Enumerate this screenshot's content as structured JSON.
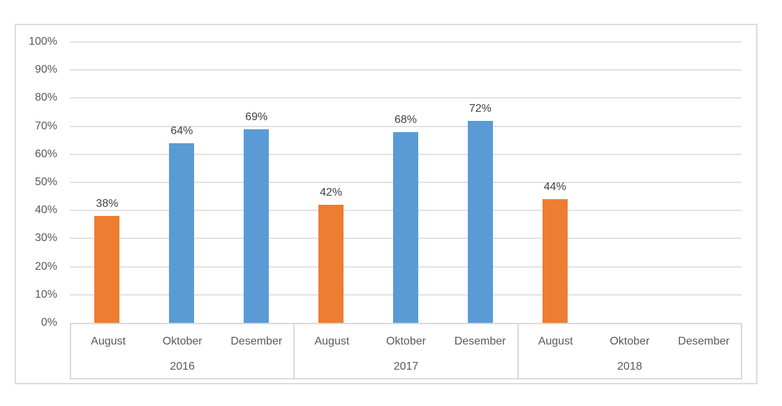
{
  "chart_data": {
    "type": "bar",
    "title": "",
    "xlabel": "",
    "ylabel": "",
    "ylim": [
      0,
      100
    ],
    "grid": true,
    "legend": "none",
    "gridline_color": "#E2E2E2",
    "axis_line_color": "#D9D9D9",
    "axis_text_color": "#595959",
    "data_label_color": "#404040",
    "y_axis": {
      "min": 0,
      "max": 100,
      "step": 10,
      "tick_labels": [
        "0%",
        "10%",
        "20%",
        "30%",
        "40%",
        "50%",
        "60%",
        "70%",
        "80%",
        "90%",
        "100%"
      ]
    },
    "x_axis": {
      "month_categories": [
        "August",
        "Oktober",
        "Desember"
      ],
      "year_groups": [
        "2016",
        "2017",
        "2018"
      ]
    },
    "series_colors": {
      "august_bars": "#ED7D31",
      "oktober_desember_bars": "#5B9BD5"
    },
    "groups": [
      {
        "label": "2016",
        "points": [
          {
            "category": "August",
            "value": 38,
            "data_label": "38%",
            "color": "#ED7D31"
          },
          {
            "category": "Oktober",
            "value": 64,
            "data_label": "64%",
            "color": "#5B9BD5"
          },
          {
            "category": "Desember",
            "value": 69,
            "data_label": "69%",
            "color": "#5B9BD5"
          }
        ]
      },
      {
        "label": "2017",
        "points": [
          {
            "category": "August",
            "value": 42,
            "data_label": "42%",
            "color": "#ED7D31"
          },
          {
            "category": "Oktober",
            "value": 68,
            "data_label": "68%",
            "color": "#5B9BD5"
          },
          {
            "category": "Desember",
            "value": 72,
            "data_label": "72%",
            "color": "#5B9BD5"
          }
        ]
      },
      {
        "label": "2018",
        "points": [
          {
            "category": "August",
            "value": 44,
            "data_label": "44%",
            "color": "#ED7D31"
          },
          {
            "category": "Oktober",
            "value": null,
            "data_label": "",
            "color": "#5B9BD5"
          },
          {
            "category": "Desember",
            "value": null,
            "data_label": "",
            "color": "#5B9BD5"
          }
        ]
      }
    ]
  }
}
